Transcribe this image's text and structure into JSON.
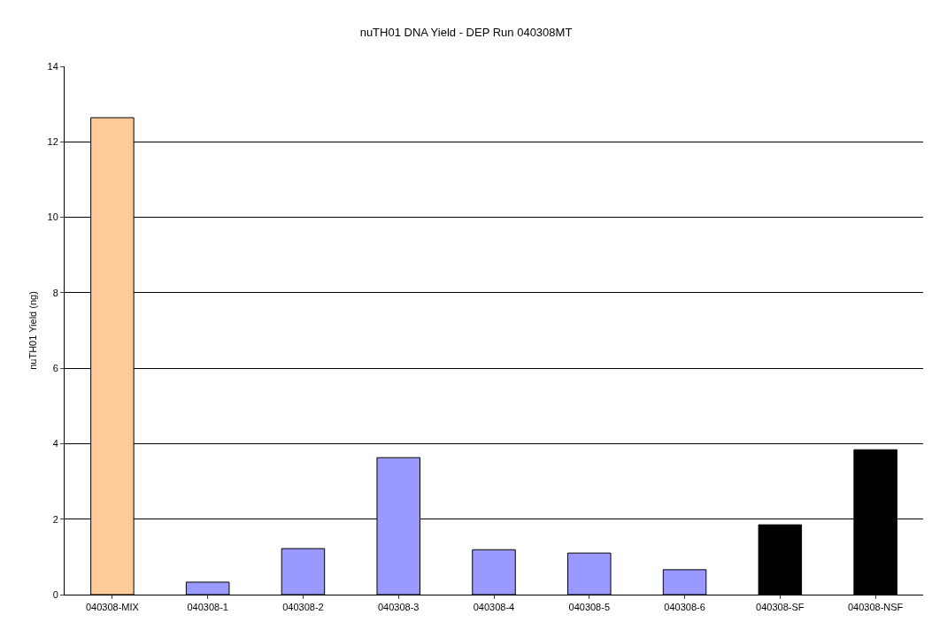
{
  "chart_data": {
    "type": "bar",
    "title": "nuTH01 DNA Yield - DEP Run 040308MT",
    "ylabel": "nuTH01 Yield (ng)",
    "categories": [
      "040308-MIX",
      "040308-1",
      "040308-2",
      "040308-3",
      "040308-4",
      "040308-5",
      "040308-6",
      "040308-SF",
      "040308-NSF"
    ],
    "values": [
      12.64,
      0.33,
      1.22,
      3.63,
      1.19,
      1.1,
      0.66,
      1.85,
      3.84
    ],
    "colors": [
      "#ffcc99",
      "#9999ff",
      "#9999ff",
      "#9999ff",
      "#9999ff",
      "#9999ff",
      "#9999ff",
      "#000000",
      "#000000"
    ],
    "ylim": [
      0,
      14
    ],
    "yticks": [
      0,
      2,
      4,
      6,
      8,
      10,
      12,
      14
    ],
    "grid": "y",
    "legend": false
  }
}
